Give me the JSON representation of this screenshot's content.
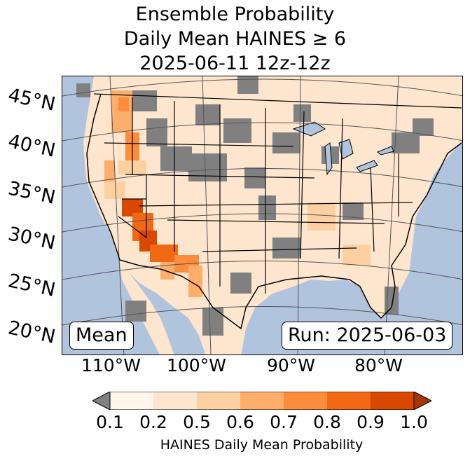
{
  "title": {
    "line1": "Ensemble Probability",
    "line2": "Daily Mean HAINES ≥ 6",
    "line3": "2025-06-11 12z-12z"
  },
  "map": {
    "latitude_labels": [
      "45°N",
      "40°N",
      "35°N",
      "30°N",
      "25°N",
      "20°N"
    ],
    "longitude_labels": [
      "110°W",
      "100°W",
      "90°W",
      "80°W"
    ],
    "stat_box": "Mean",
    "run_box": "Run: 2025-06-03",
    "colors": {
      "ocean": "#b0c4de",
      "land_missing": "#808080",
      "borders": "#000000",
      "graticule": "#555555"
    }
  },
  "colorbar": {
    "label": "HAINES Daily Mean Probability",
    "ticks": [
      "0.1",
      "0.2",
      "0.5",
      "0.6",
      "0.7",
      "0.8",
      "0.9",
      "1.0"
    ],
    "bins": [
      "#fff5eb",
      "#fee6ce",
      "#fdd0a2",
      "#fdae6b",
      "#fd8d3c",
      "#f16913",
      "#d94801"
    ],
    "under_color": "#808080",
    "over_color": "#a63603"
  }
}
